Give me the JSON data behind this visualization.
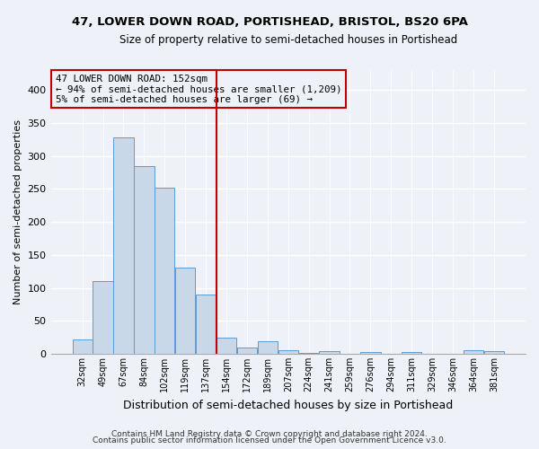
{
  "title1": "47, LOWER DOWN ROAD, PORTISHEAD, BRISTOL, BS20 6PA",
  "title2": "Size of property relative to semi-detached houses in Portishead",
  "xlabel": "Distribution of semi-detached houses by size in Portishead",
  "ylabel": "Number of semi-detached properties",
  "categories": [
    "32sqm",
    "49sqm",
    "67sqm",
    "84sqm",
    "102sqm",
    "119sqm",
    "137sqm",
    "154sqm",
    "172sqm",
    "189sqm",
    "207sqm",
    "224sqm",
    "241sqm",
    "259sqm",
    "276sqm",
    "294sqm",
    "311sqm",
    "329sqm",
    "346sqm",
    "364sqm",
    "381sqm"
  ],
  "values": [
    22,
    110,
    328,
    285,
    252,
    130,
    90,
    25,
    9,
    19,
    5,
    2,
    4,
    0,
    3,
    0,
    3,
    0,
    0,
    5,
    4
  ],
  "bar_color": "#c8d8e8",
  "bar_edge_color": "#5b9bd5",
  "marker_line_x_label": "154sqm",
  "marker_line_color": "#c00000",
  "annotation_title": "47 LOWER DOWN ROAD: 152sqm",
  "annotation_line1": "← 94% of semi-detached houses are smaller (1,209)",
  "annotation_line2": "5% of semi-detached houses are larger (69) →",
  "annotation_box_color": "#c00000",
  "ylim": [
    0,
    430
  ],
  "yticks": [
    0,
    50,
    100,
    150,
    200,
    250,
    300,
    350,
    400
  ],
  "footnote1": "Contains HM Land Registry data © Crown copyright and database right 2024.",
  "footnote2": "Contains public sector information licensed under the Open Government Licence v3.0.",
  "bg_color": "#eef2f8"
}
